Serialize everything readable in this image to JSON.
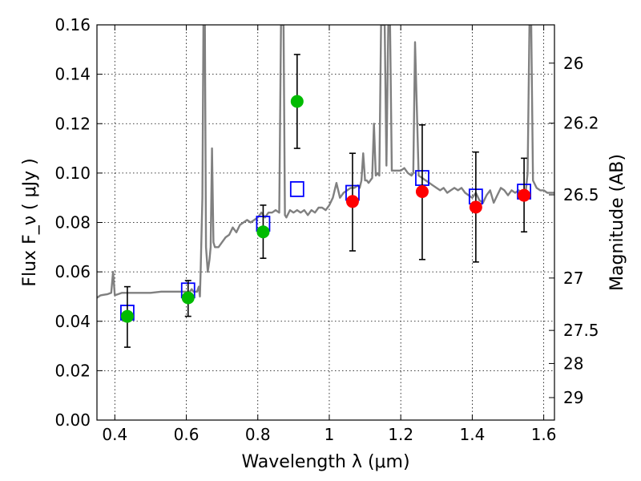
{
  "chart_data": {
    "type": "scatter",
    "xlabel": "Wavelength  λ (μm)",
    "ylabel": "Flux  F_ν  ( μJy )",
    "y2label": "Magnitude (AB)",
    "xlim": [
      0.35,
      1.63
    ],
    "ylim": [
      0.0,
      0.16
    ],
    "grid": true,
    "x_ticks": [
      0.4,
      0.6,
      0.8,
      1.0,
      1.2,
      1.4,
      1.6
    ],
    "x_tick_labels": [
      "0.4",
      "0.6",
      "0.8",
      "1",
      "1.2",
      "1.4",
      "1.6"
    ],
    "y_ticks": [
      0.0,
      0.02,
      0.04,
      0.06,
      0.08,
      0.1,
      0.12,
      0.14,
      0.16
    ],
    "y_tick_labels": [
      "0.00",
      "0.02",
      "0.04",
      "0.06",
      "0.08",
      "0.10",
      "0.12",
      "0.14",
      "0.16"
    ],
    "mag_ticks": [
      {
        "label": "26",
        "flux": 0.1445
      },
      {
        "label": "26.2",
        "flux": 0.1202
      },
      {
        "label": "26.5",
        "flux": 0.0912
      },
      {
        "label": "27",
        "flux": 0.0575
      },
      {
        "label": "27.5",
        "flux": 0.0363
      },
      {
        "label": "28",
        "flux": 0.0229
      },
      {
        "label": "29",
        "flux": 0.0091
      }
    ],
    "series": [
      {
        "kind": "line",
        "color": "#808080",
        "points": [
          [
            0.35,
            0.0495
          ],
          [
            0.36,
            0.0505
          ],
          [
            0.38,
            0.051
          ],
          [
            0.39,
            0.0515
          ],
          [
            0.395,
            0.06
          ],
          [
            0.4,
            0.0505
          ],
          [
            0.42,
            0.0515
          ],
          [
            0.45,
            0.0515
          ],
          [
            0.48,
            0.0515
          ],
          [
            0.5,
            0.0515
          ],
          [
            0.53,
            0.052
          ],
          [
            0.56,
            0.052
          ],
          [
            0.59,
            0.052
          ],
          [
            0.61,
            0.052
          ],
          [
            0.615,
            0.053
          ],
          [
            0.62,
            0.052
          ],
          [
            0.63,
            0.052
          ],
          [
            0.635,
            0.054
          ],
          [
            0.638,
            0.05
          ],
          [
            0.64,
            0.06
          ],
          [
            0.645,
            0.09
          ],
          [
            0.648,
            0.16
          ],
          [
            0.652,
            0.16
          ],
          [
            0.655,
            0.07
          ],
          [
            0.66,
            0.06
          ],
          [
            0.665,
            0.065
          ],
          [
            0.668,
            0.07
          ],
          [
            0.672,
            0.11
          ],
          [
            0.676,
            0.072
          ],
          [
            0.68,
            0.07
          ],
          [
            0.69,
            0.07
          ],
          [
            0.7,
            0.072
          ],
          [
            0.71,
            0.074
          ],
          [
            0.72,
            0.075
          ],
          [
            0.73,
            0.078
          ],
          [
            0.74,
            0.076
          ],
          [
            0.75,
            0.079
          ],
          [
            0.76,
            0.08
          ],
          [
            0.77,
            0.081
          ],
          [
            0.78,
            0.08
          ],
          [
            0.79,
            0.081
          ],
          [
            0.8,
            0.082
          ],
          [
            0.81,
            0.084
          ],
          [
            0.82,
            0.082
          ],
          [
            0.83,
            0.084
          ],
          [
            0.84,
            0.084
          ],
          [
            0.85,
            0.085
          ],
          [
            0.86,
            0.084
          ],
          [
            0.865,
            0.16
          ],
          [
            0.872,
            0.16
          ],
          [
            0.876,
            0.083
          ],
          [
            0.88,
            0.082
          ],
          [
            0.89,
            0.085
          ],
          [
            0.9,
            0.084
          ],
          [
            0.91,
            0.085
          ],
          [
            0.92,
            0.084
          ],
          [
            0.93,
            0.085
          ],
          [
            0.94,
            0.083
          ],
          [
            0.95,
            0.085
          ],
          [
            0.96,
            0.084
          ],
          [
            0.97,
            0.086
          ],
          [
            0.98,
            0.086
          ],
          [
            0.99,
            0.085
          ],
          [
            1.0,
            0.087
          ],
          [
            1.01,
            0.09
          ],
          [
            1.02,
            0.096
          ],
          [
            1.03,
            0.09
          ],
          [
            1.04,
            0.092
          ],
          [
            1.05,
            0.093
          ],
          [
            1.06,
            0.094
          ],
          [
            1.07,
            0.094
          ],
          [
            1.08,
            0.095
          ],
          [
            1.085,
            0.094
          ],
          [
            1.09,
            0.097
          ],
          [
            1.095,
            0.108
          ],
          [
            1.1,
            0.097
          ],
          [
            1.105,
            0.097
          ],
          [
            1.11,
            0.096
          ],
          [
            1.12,
            0.098
          ],
          [
            1.125,
            0.12
          ],
          [
            1.13,
            0.099
          ],
          [
            1.135,
            0.1
          ],
          [
            1.14,
            0.099
          ],
          [
            1.145,
            0.16
          ],
          [
            1.155,
            0.16
          ],
          [
            1.16,
            0.103
          ],
          [
            1.165,
            0.16
          ],
          [
            1.17,
            0.16
          ],
          [
            1.175,
            0.101
          ],
          [
            1.18,
            0.101
          ],
          [
            1.19,
            0.101
          ],
          [
            1.2,
            0.101
          ],
          [
            1.21,
            0.102
          ],
          [
            1.22,
            0.1
          ],
          [
            1.23,
            0.099
          ],
          [
            1.235,
            0.1
          ],
          [
            1.24,
            0.153
          ],
          [
            1.25,
            0.099
          ],
          [
            1.26,
            0.098
          ],
          [
            1.27,
            0.097
          ],
          [
            1.28,
            0.096
          ],
          [
            1.29,
            0.095
          ],
          [
            1.3,
            0.094
          ],
          [
            1.31,
            0.093
          ],
          [
            1.32,
            0.094
          ],
          [
            1.33,
            0.092
          ],
          [
            1.34,
            0.093
          ],
          [
            1.35,
            0.094
          ],
          [
            1.36,
            0.093
          ],
          [
            1.37,
            0.094
          ],
          [
            1.38,
            0.092
          ],
          [
            1.39,
            0.091
          ],
          [
            1.4,
            0.09
          ],
          [
            1.41,
            0.092
          ],
          [
            1.42,
            0.089
          ],
          [
            1.43,
            0.088
          ],
          [
            1.44,
            0.091
          ],
          [
            1.45,
            0.093
          ],
          [
            1.46,
            0.088
          ],
          [
            1.47,
            0.091
          ],
          [
            1.48,
            0.094
          ],
          [
            1.49,
            0.093
          ],
          [
            1.5,
            0.091
          ],
          [
            1.51,
            0.093
          ],
          [
            1.52,
            0.092
          ],
          [
            1.53,
            0.093
          ],
          [
            1.54,
            0.092
          ],
          [
            1.55,
            0.093
          ],
          [
            1.555,
            0.1
          ],
          [
            1.56,
            0.16
          ],
          [
            1.565,
            0.16
          ],
          [
            1.57,
            0.097
          ],
          [
            1.58,
            0.094
          ],
          [
            1.59,
            0.093
          ],
          [
            1.6,
            0.093
          ],
          [
            1.61,
            0.092
          ],
          [
            1.62,
            0.092
          ],
          [
            1.63,
            0.092
          ]
        ]
      },
      {
        "kind": "open_square",
        "color": "#0000ff",
        "points": [
          [
            0.435,
            0.0435
          ],
          [
            0.605,
            0.0525
          ],
          [
            0.815,
            0.0795
          ],
          [
            0.91,
            0.0935
          ],
          [
            1.065,
            0.092
          ],
          [
            1.26,
            0.098
          ],
          [
            1.41,
            0.0905
          ],
          [
            1.545,
            0.0925
          ]
        ]
      },
      {
        "kind": "filled_circle",
        "color": "#00bb00",
        "points": [
          {
            "x": 0.435,
            "y": 0.042,
            "lo": 0.0295,
            "hi": 0.054
          },
          {
            "x": 0.605,
            "y": 0.0495,
            "lo": 0.042,
            "hi": 0.0565
          },
          {
            "x": 0.815,
            "y": 0.0762,
            "lo": 0.0655,
            "hi": 0.087
          },
          {
            "x": 0.91,
            "y": 0.129,
            "lo": 0.11,
            "hi": 0.148
          }
        ]
      },
      {
        "kind": "filled_circle",
        "color": "#ff0000",
        "points": [
          {
            "x": 1.065,
            "y": 0.0885,
            "lo": 0.0685,
            "hi": 0.108
          },
          {
            "x": 1.26,
            "y": 0.0925,
            "lo": 0.065,
            "hi": 0.1195
          },
          {
            "x": 1.41,
            "y": 0.0862,
            "lo": 0.064,
            "hi": 0.1085
          },
          {
            "x": 1.545,
            "y": 0.091,
            "lo": 0.0762,
            "hi": 0.106
          }
        ]
      }
    ]
  }
}
